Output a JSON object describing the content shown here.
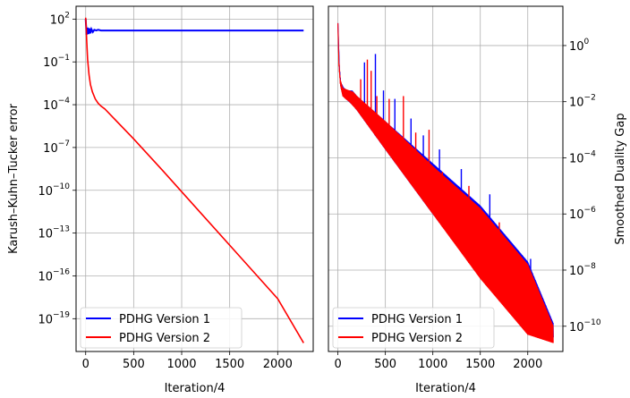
{
  "chart_data": [
    {
      "type": "line",
      "xlabel": "Iteration/4",
      "ylabel": "Karush–Kuhn–Tucker error",
      "yscale": "log",
      "xlim": [
        -100,
        2370
      ],
      "ylim_exp": [
        -21.3,
        2.9
      ],
      "xticks": [
        0,
        500,
        1000,
        1500,
        2000
      ],
      "yticks_exp": [
        2,
        -1,
        -4,
        -7,
        -10,
        -13,
        -16,
        -19
      ],
      "grid": true,
      "legend": "lower-left",
      "series": [
        {
          "name": "PDHG Version 1",
          "color": "#0000ff",
          "x": [
            0,
            10,
            20,
            30,
            40,
            50,
            60,
            75,
            90,
            110,
            130,
            160,
            200,
            400,
            800,
            1200,
            1600,
            2000,
            2270
          ],
          "y_exp": [
            2.0,
            0.9,
            1.4,
            0.95,
            1.35,
            1.0,
            1.3,
            1.1,
            1.25,
            1.2,
            1.25,
            1.2,
            1.2,
            1.2,
            1.2,
            1.2,
            1.2,
            1.2,
            1.2
          ]
        },
        {
          "name": "PDHG Version 2",
          "color": "#ff0000",
          "x": [
            0,
            5,
            10,
            20,
            35,
            50,
            70,
            100,
            130,
            160,
            200,
            500,
            800,
            1200,
            1600,
            2000,
            2270
          ],
          "y_exp": [
            2.1,
            1.5,
            0.6,
            -0.8,
            -1.9,
            -2.6,
            -3.1,
            -3.6,
            -3.9,
            -4.1,
            -4.3,
            -6.4,
            -8.6,
            -11.6,
            -14.6,
            -17.6,
            -20.7
          ]
        }
      ]
    },
    {
      "type": "line",
      "xlabel": "Iteration/4",
      "ylabel": "Smoothed Duality Gap",
      "yscale": "log",
      "ylabel_position": "right",
      "xlim": [
        -100,
        2370
      ],
      "ylim_exp": [
        -10.9,
        1.4
      ],
      "xticks": [
        0,
        500,
        1000,
        1500,
        2000
      ],
      "yticks_exp": [
        0,
        -2,
        -4,
        -6,
        -8,
        -10
      ],
      "grid": true,
      "legend": "lower-left",
      "series": [
        {
          "name": "PDHG Version 1",
          "color": "#0000ff",
          "x": [
            0,
            15,
            30,
            60,
            100,
            150,
            200,
            500,
            1000,
            1500,
            2000,
            2270
          ],
          "y_exp": [
            0.8,
            -0.7,
            -1.3,
            -1.5,
            -1.6,
            -1.6,
            -1.8,
            -2.7,
            -4.2,
            -5.7,
            -7.7,
            -9.9
          ],
          "low_exp": [
            0.8,
            -0.9,
            -1.5,
            -1.8,
            -1.95,
            -2.1,
            -2.3,
            -3.7,
            -6.0,
            -8.2,
            -10.1,
            -10.4
          ],
          "spikes": [
            [
              280,
              -0.6
            ],
            [
              395,
              -0.3
            ],
            [
              480,
              -1.6
            ],
            [
              600,
              -1.9
            ],
            [
              770,
              -2.6
            ],
            [
              900,
              -3.2
            ],
            [
              1070,
              -3.7
            ],
            [
              1300,
              -4.4
            ],
            [
              1600,
              -5.3
            ],
            [
              2030,
              -7.6
            ]
          ]
        },
        {
          "name": "PDHG Version 2",
          "color": "#ff0000",
          "x": [
            0,
            10,
            25,
            50,
            80,
            120,
            160,
            200,
            500,
            1000,
            1500,
            2000,
            2270
          ],
          "y_exp": [
            0.8,
            -0.5,
            -1.2,
            -1.5,
            -1.55,
            -1.6,
            -1.65,
            -1.8,
            -2.7,
            -4.3,
            -5.8,
            -7.8,
            -10.0
          ],
          "low_exp": [
            0.8,
            -0.7,
            -1.4,
            -1.8,
            -1.9,
            -2.0,
            -2.15,
            -2.3,
            -3.7,
            -6.0,
            -8.3,
            -10.3,
            -10.6
          ],
          "spikes": [
            [
              240,
              -1.2
            ],
            [
              310,
              -0.5
            ],
            [
              350,
              -0.9
            ],
            [
              410,
              -1.8
            ],
            [
              540,
              -1.9
            ],
            [
              690,
              -1.8
            ],
            [
              820,
              -3.1
            ],
            [
              960,
              -3.0
            ],
            [
              1100,
              -4.5
            ],
            [
              1190,
              -5.0
            ],
            [
              1380,
              -5.0
            ],
            [
              1560,
              -6.2
            ],
            [
              1700,
              -6.3
            ],
            [
              2000,
              -8.5
            ]
          ]
        }
      ]
    }
  ]
}
